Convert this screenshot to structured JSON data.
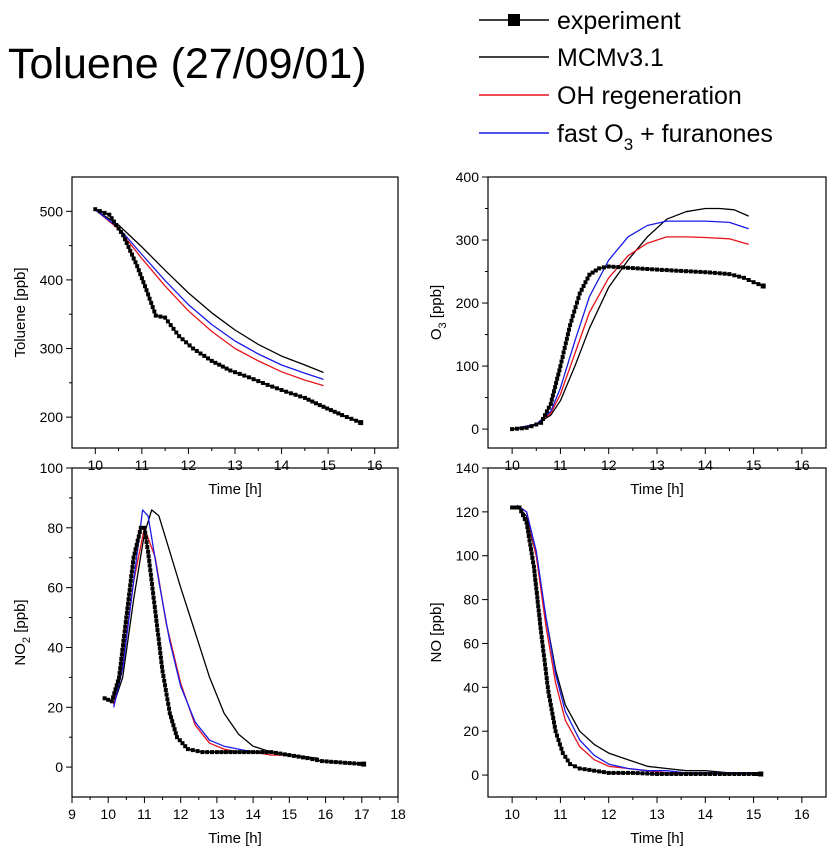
{
  "title": "Toluene  (27/09/01)",
  "legend": [
    {
      "label": "experiment",
      "color": "#000000",
      "marker": "square"
    },
    {
      "label": "MCMv3.1",
      "color": "#000000",
      "marker": "none"
    },
    {
      "label": "OH regeneration",
      "color": "#e8141c",
      "marker": "none"
    },
    {
      "label_main": "fast O",
      "label_sub": "3",
      "label_tail": " + furanones",
      "color": "#1a1ae6",
      "marker": "none"
    }
  ],
  "chart_data": [
    {
      "type": "line",
      "xlabel": "Time [h]",
      "ylabel": "Toluene [ppb]",
      "xlim": [
        9.5,
        16.5
      ],
      "ylim": [
        155,
        550
      ],
      "xticks": [
        10,
        11,
        12,
        13,
        14,
        15,
        16
      ],
      "yticks": [
        200,
        300,
        400,
        500
      ],
      "series": [
        {
          "name": "experiment",
          "x": [
            10.0,
            10.3,
            10.6,
            10.9,
            11.1,
            11.3,
            11.5,
            11.8,
            12.1,
            12.5,
            12.9,
            13.3,
            13.7,
            14.1,
            14.5,
            14.9,
            15.3,
            15.7
          ],
          "y": [
            503,
            495,
            465,
            420,
            385,
            348,
            345,
            318,
            300,
            282,
            268,
            258,
            247,
            237,
            228,
            215,
            203,
            192
          ]
        },
        {
          "name": "MCMv3.1",
          "x": [
            10.0,
            10.5,
            11.0,
            11.5,
            12.0,
            12.5,
            13.0,
            13.5,
            14.0,
            14.5,
            14.9
          ],
          "y": [
            502,
            480,
            448,
            414,
            381,
            352,
            327,
            306,
            289,
            276,
            265
          ]
        },
        {
          "name": "OH regeneration",
          "x": [
            10.0,
            10.5,
            11.0,
            11.5,
            12.0,
            12.5,
            13.0,
            13.5,
            14.0,
            14.5,
            14.9
          ],
          "y": [
            502,
            474,
            431,
            391,
            355,
            325,
            300,
            282,
            266,
            254,
            246
          ]
        },
        {
          "name": "fast O3 + furanones",
          "x": [
            10.0,
            10.5,
            11.0,
            11.5,
            12.0,
            12.5,
            13.0,
            13.5,
            14.0,
            14.5,
            14.9
          ],
          "y": [
            502,
            476,
            437,
            399,
            364,
            335,
            311,
            292,
            276,
            264,
            255
          ]
        }
      ]
    },
    {
      "type": "line",
      "xlabel": "Time [h]",
      "ylabel_main": "O",
      "ylabel_sub": "3",
      "ylabel_tail": " [ppb]",
      "xlim": [
        9.5,
        16.5
      ],
      "ylim": [
        -30,
        400
      ],
      "xticks": [
        10,
        11,
        12,
        13,
        14,
        15,
        16
      ],
      "yticks": [
        0,
        100,
        200,
        300,
        400
      ],
      "series": [
        {
          "name": "experiment",
          "x": [
            10.0,
            10.3,
            10.6,
            10.8,
            11.0,
            11.2,
            11.4,
            11.6,
            11.8,
            12.0,
            12.2,
            12.6,
            13.0,
            13.5,
            14.0,
            14.5,
            14.8,
            15.0,
            15.2
          ],
          "y": [
            0,
            2,
            10,
            40,
            100,
            165,
            215,
            245,
            255,
            258,
            257,
            255,
            253,
            251,
            249,
            246,
            240,
            233,
            227
          ]
        },
        {
          "name": "MCMv3.1",
          "x": [
            10.0,
            10.5,
            10.8,
            11.0,
            11.3,
            11.6,
            12.0,
            12.4,
            12.8,
            13.2,
            13.6,
            14.0,
            14.3,
            14.6,
            14.9
          ],
          "y": [
            0,
            8,
            22,
            45,
            100,
            160,
            225,
            268,
            305,
            333,
            345,
            350,
            350,
            348,
            338
          ]
        },
        {
          "name": "OH regeneration",
          "x": [
            10.0,
            10.5,
            10.8,
            11.0,
            11.3,
            11.6,
            12.0,
            12.4,
            12.8,
            13.2,
            13.6,
            14.0,
            14.5,
            14.9
          ],
          "y": [
            0,
            8,
            25,
            55,
            120,
            185,
            240,
            275,
            295,
            305,
            305,
            304,
            302,
            293
          ]
        },
        {
          "name": "fast O3 + furanones",
          "x": [
            10.0,
            10.5,
            10.8,
            11.0,
            11.3,
            11.6,
            12.0,
            12.4,
            12.8,
            13.2,
            13.6,
            14.0,
            14.5,
            14.9
          ],
          "y": [
            0,
            8,
            28,
            65,
            140,
            210,
            268,
            305,
            323,
            330,
            330,
            330,
            328,
            318
          ]
        }
      ]
    },
    {
      "type": "line",
      "xlabel": "Time [h]",
      "ylabel_main": "NO",
      "ylabel_sub": "2",
      "ylabel_tail": " [ppb]",
      "xlim": [
        9,
        18
      ],
      "ylim": [
        -10,
        100
      ],
      "xticks": [
        9,
        10,
        11,
        12,
        13,
        14,
        15,
        16,
        17,
        18
      ],
      "yticks": [
        0,
        20,
        40,
        60,
        80,
        100
      ],
      "series": [
        {
          "name": "experiment",
          "x": [
            9.9,
            10.1,
            10.3,
            10.5,
            10.7,
            10.9,
            11.0,
            11.1,
            11.3,
            11.5,
            11.7,
            11.9,
            12.2,
            12.6,
            13.0,
            13.5,
            14.0,
            14.5,
            15.0,
            15.5,
            15.9,
            17.05
          ],
          "y": [
            23,
            22,
            30,
            50,
            70,
            80,
            80,
            72,
            52,
            32,
            18,
            10,
            6,
            5,
            5,
            5,
            5,
            5,
            4,
            3,
            2,
            1
          ]
        },
        {
          "name": "MCMv3.1",
          "x": [
            10.15,
            10.4,
            10.7,
            11.0,
            11.2,
            11.4,
            11.7,
            12.0,
            12.4,
            12.8,
            13.2,
            13.6,
            14.0,
            14.5,
            15.0,
            15.8
          ],
          "y": [
            21,
            30,
            56,
            78,
            86,
            84,
            72,
            60,
            45,
            30,
            18,
            11,
            7,
            5,
            4,
            3
          ]
        },
        {
          "name": "OH regeneration",
          "x": [
            10.15,
            10.4,
            10.7,
            11.0,
            11.3,
            11.6,
            12.0,
            12.4,
            12.8,
            13.2,
            13.6,
            14.0,
            14.5,
            15.0
          ],
          "y": [
            21,
            35,
            62,
            80,
            70,
            48,
            28,
            14,
            8,
            6,
            5,
            5,
            4,
            4
          ]
        },
        {
          "name": "fast O3 + furanones",
          "x": [
            10.15,
            10.4,
            10.7,
            10.95,
            11.1,
            11.4,
            11.7,
            12.0,
            12.4,
            12.8,
            13.2,
            13.6,
            14.0,
            14.5,
            15.0
          ],
          "y": [
            20,
            33,
            62,
            86,
            84,
            62,
            42,
            27,
            15,
            9,
            7,
            6,
            5,
            5,
            4
          ]
        }
      ]
    },
    {
      "type": "line",
      "xlabel": "Time [h]",
      "ylabel": "NO [ppb]",
      "xlim": [
        9.5,
        16.5
      ],
      "ylim": [
        -10,
        140
      ],
      "xticks": [
        10,
        11,
        12,
        13,
        14,
        15,
        16
      ],
      "yticks": [
        0,
        20,
        40,
        60,
        80,
        100,
        120,
        140
      ],
      "series": [
        {
          "name": "experiment",
          "x": [
            10.0,
            10.15,
            10.3,
            10.45,
            10.6,
            10.75,
            10.9,
            11.05,
            11.2,
            11.4,
            11.7,
            12.0,
            12.5,
            13.0,
            13.5,
            14.0,
            14.5,
            15.0,
            15.15
          ],
          "y": [
            122,
            122,
            115,
            95,
            65,
            38,
            20,
            10,
            5,
            3,
            2,
            1,
            1,
            0.5,
            0.5,
            0.5,
            0.5,
            0.5,
            0.5
          ]
        },
        {
          "name": "MCMv3.1",
          "x": [
            10.1,
            10.3,
            10.5,
            10.7,
            10.9,
            11.1,
            11.4,
            11.7,
            12.0,
            12.4,
            12.8,
            13.2,
            13.6,
            14.0,
            14.5,
            15.0
          ],
          "y": [
            123,
            118,
            100,
            72,
            48,
            32,
            20,
            14,
            10,
            7,
            4,
            3,
            2,
            2,
            1,
            1
          ]
        },
        {
          "name": "OH regeneration",
          "x": [
            10.1,
            10.3,
            10.5,
            10.7,
            10.9,
            11.1,
            11.4,
            11.7,
            12.0,
            12.4,
            12.8,
            13.2,
            13.6,
            14.0,
            14.5,
            15.0
          ],
          "y": [
            123,
            120,
            100,
            68,
            42,
            25,
            13,
            7,
            4,
            3,
            2,
            1,
            1,
            1,
            1,
            1
          ]
        },
        {
          "name": "fast O3 + furanones",
          "x": [
            10.1,
            10.3,
            10.5,
            10.7,
            10.9,
            11.1,
            11.4,
            11.7,
            12.0,
            12.4,
            12.8,
            13.2,
            13.6,
            14.0,
            14.5,
            15.0
          ],
          "y": [
            123,
            120,
            102,
            72,
            46,
            29,
            16,
            9,
            5,
            3,
            2,
            2,
            1,
            1,
            1,
            1
          ]
        }
      ]
    }
  ]
}
